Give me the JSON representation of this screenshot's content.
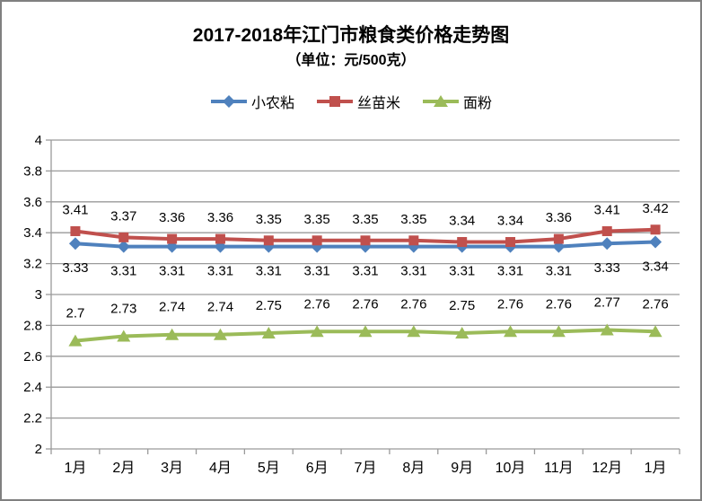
{
  "chart": {
    "title": "2017-2018年江门市粮食类价格走势图",
    "subtitle": "（单位：元/500克）"
  },
  "chart_data": {
    "type": "line",
    "title": "2017-2018年江门市粮食类价格走势图",
    "subtitle": "（单位：元/500克）",
    "categories": [
      "1月",
      "2月",
      "3月",
      "4月",
      "5月",
      "6月",
      "7月",
      "8月",
      "9月",
      "10月",
      "11月",
      "12月",
      "1月"
    ],
    "series": [
      {
        "name": "小农粘",
        "color": "#4F81BD",
        "marker": "diamond",
        "label_position": "below",
        "label_dy": 32,
        "values": [
          3.33,
          3.31,
          3.31,
          3.31,
          3.31,
          3.31,
          3.31,
          3.31,
          3.31,
          3.31,
          3.31,
          3.33,
          3.34
        ]
      },
      {
        "name": "丝苗米",
        "color": "#C0504D",
        "marker": "square",
        "label_position": "above",
        "label_dy": -19,
        "values": [
          3.41,
          3.37,
          3.36,
          3.36,
          3.35,
          3.35,
          3.35,
          3.35,
          3.34,
          3.34,
          3.36,
          3.41,
          3.42
        ]
      },
      {
        "name": "面粉",
        "color": "#9BBB59",
        "marker": "triangle",
        "label_position": "above",
        "label_dy": -26,
        "values": [
          2.7,
          2.73,
          2.74,
          2.74,
          2.75,
          2.76,
          2.76,
          2.76,
          2.75,
          2.76,
          2.76,
          2.77,
          2.76
        ]
      }
    ],
    "ylim": [
      2,
      4
    ],
    "ytick_step": 0.2,
    "grid": true,
    "legend_position": "top",
    "gridline_color": "#9A9A9A",
    "axis_color": "#9A9A9A",
    "data_label_color": "#000000"
  }
}
